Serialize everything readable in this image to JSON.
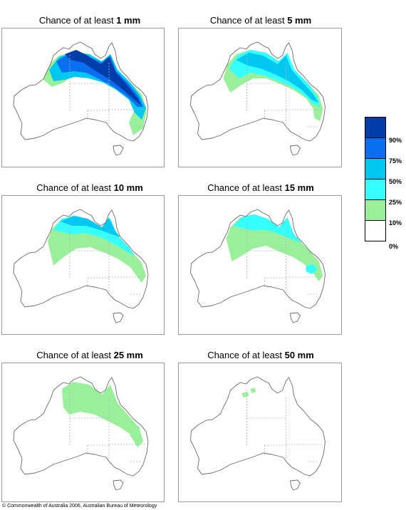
{
  "colors": {
    "c10": "#9af09a",
    "c25": "#36ffff",
    "c50": "#00c8f0",
    "c75": "#0a6ef0",
    "c90": "#003caa",
    "c0": "#ffffff",
    "outline": "#6a6a6a",
    "border": "#b4b4b4"
  },
  "panels": [
    {
      "prefix": "Chance of at least ",
      "amount": "1 mm",
      "level": 0
    },
    {
      "prefix": "Chance of at least ",
      "amount": "5 mm",
      "level": 1
    },
    {
      "prefix": "Chance of at least ",
      "amount": "10 mm",
      "level": 2
    },
    {
      "prefix": "Chance of at least ",
      "amount": "15 mm",
      "level": 3
    },
    {
      "prefix": "Chance of at least ",
      "amount": "25 mm",
      "level": 4
    },
    {
      "prefix": "Chance of at least ",
      "amount": "50 mm",
      "level": 5
    }
  ],
  "legend": {
    "ticks": [
      "90%",
      "75%",
      "50%",
      "25%",
      "10%",
      "0%"
    ],
    "swatches": [
      "#003caa",
      "#0a6ef0",
      "#00c8f0",
      "#36ffff",
      "#9af09a",
      "#ffffff"
    ]
  },
  "footer": "© Commonwealth of Australia 2006, Australian Bureau of Meteorology"
}
